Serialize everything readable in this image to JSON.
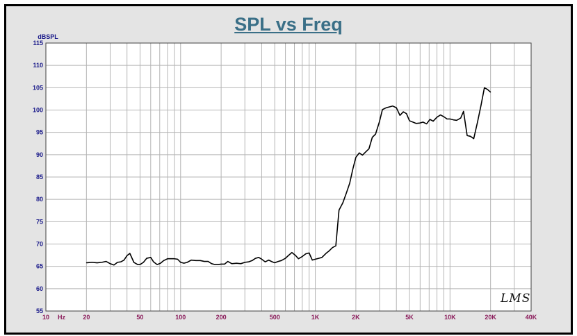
{
  "chart_data": {
    "type": "line",
    "title": "SPL vs Freq",
    "ylabel": "dBSPL",
    "xlabel": "Hz",
    "x_scale": "log",
    "xlim": [
      10,
      40000
    ],
    "ylim": [
      55,
      115
    ],
    "grid": true,
    "y_ticks": [
      115,
      110,
      105,
      100,
      95,
      90,
      85,
      80,
      75,
      70,
      65,
      60,
      55
    ],
    "x_ticks": [
      {
        "label": "10",
        "value": 10
      },
      {
        "label": "20",
        "value": 20
      },
      {
        "label": "50",
        "value": 50
      },
      {
        "label": "100",
        "value": 100
      },
      {
        "label": "200",
        "value": 200
      },
      {
        "label": "500",
        "value": 500
      },
      {
        "label": "1K",
        "value": 1000
      },
      {
        "label": "2K",
        "value": 2000
      },
      {
        "label": "5K",
        "value": 5000
      },
      {
        "label": "10K",
        "value": 10000
      },
      {
        "label": "20K",
        "value": 20000
      },
      {
        "label": "40K",
        "value": 40000
      }
    ],
    "series": [
      {
        "color": "#000000",
        "x": [
          20,
          22,
          24,
          26,
          28,
          30,
          32,
          34,
          36,
          38,
          40,
          42,
          45,
          48,
          50,
          53,
          56,
          60,
          63,
          67,
          71,
          75,
          80,
          85,
          90,
          95,
          100,
          106,
          112,
          120,
          130,
          140,
          150,
          160,
          170,
          180,
          190,
          200,
          212,
          224,
          240,
          260,
          280,
          300,
          320,
          340,
          360,
          380,
          400,
          425,
          450,
          480,
          500,
          530,
          560,
          600,
          630,
          670,
          710,
          750,
          800,
          850,
          900,
          950,
          1000,
          1060,
          1120,
          1200,
          1260,
          1340,
          1420,
          1500,
          1600,
          1700,
          1800,
          1900,
          2000,
          2120,
          2240,
          2400,
          2500,
          2650,
          2800,
          3000,
          3150,
          3350,
          3550,
          3750,
          4000,
          4250,
          4500,
          4750,
          5000,
          5300,
          5600,
          6000,
          6300,
          6700,
          7100,
          7500,
          8000,
          8500,
          9000,
          9500,
          10000,
          10600,
          11200,
          12000,
          12600,
          13400,
          14200,
          15000,
          16000,
          17000,
          18000,
          19000,
          20000
        ],
        "y": [
          65.8,
          65.9,
          65.8,
          65.9,
          66.1,
          65.6,
          65.3,
          65.9,
          66.0,
          66.4,
          67.4,
          67.9,
          65.9,
          65.4,
          65.4,
          65.9,
          66.8,
          67.0,
          66.0,
          65.4,
          65.7,
          66.3,
          66.7,
          66.7,
          66.7,
          66.6,
          65.9,
          65.7,
          65.9,
          66.4,
          66.3,
          66.3,
          66.1,
          66.1,
          65.6,
          65.4,
          65.4,
          65.5,
          65.5,
          66.1,
          65.6,
          65.7,
          65.6,
          65.9,
          66.0,
          66.3,
          66.8,
          67.0,
          66.6,
          66.0,
          66.4,
          66.0,
          65.8,
          66.1,
          66.3,
          66.8,
          67.4,
          68.1,
          67.5,
          66.7,
          67.2,
          67.8,
          68.0,
          66.4,
          66.6,
          66.8,
          67.0,
          67.9,
          68.4,
          69.2,
          69.6,
          77.6,
          79.2,
          81.4,
          83.6,
          86.8,
          89.4,
          90.4,
          89.9,
          90.8,
          91.3,
          93.9,
          94.6,
          97.5,
          100.1,
          100.5,
          100.7,
          100.9,
          100.5,
          98.8,
          99.6,
          99.2,
          97.6,
          97.3,
          97.0,
          97.1,
          97.3,
          96.9,
          97.9,
          97.5,
          98.4,
          98.9,
          98.5,
          98.0,
          98.0,
          97.8,
          97.7,
          98.2,
          99.7,
          94.3,
          94.1,
          93.6,
          97.3,
          101.1,
          105.0,
          104.6,
          104.0
        ]
      }
    ]
  },
  "logo_text": "LMS"
}
